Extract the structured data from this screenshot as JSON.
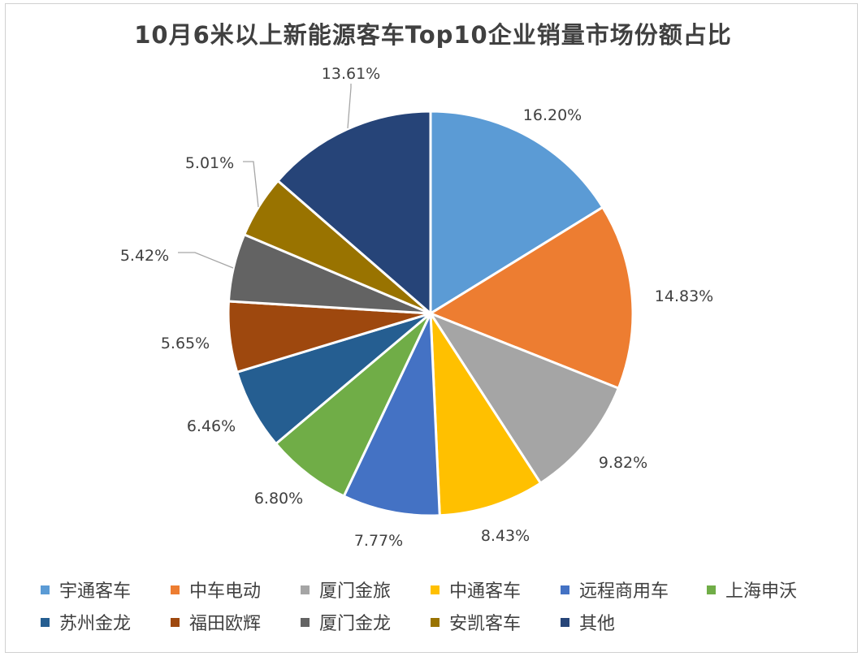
{
  "chart_data": {
    "type": "pie",
    "title": "10月6米以上新能源客车Top10企业销量市场份额占比",
    "categories": [
      "宇通客车",
      "中车电动",
      "厦门金旅",
      "中通客车",
      "远程商用车",
      "上海申沃",
      "苏州金龙",
      "福田欧辉",
      "厦门金龙",
      "安凯客车",
      "其他"
    ],
    "values": [
      16.2,
      14.83,
      9.82,
      8.43,
      7.77,
      6.8,
      6.46,
      5.65,
      5.42,
      5.01,
      13.61
    ],
    "data_labels": [
      "16.20%",
      "14.83%",
      "9.82%",
      "8.43%",
      "7.77%",
      "6.80%",
      "6.46%",
      "5.65%",
      "5.42%",
      "5.01%",
      "13.61%"
    ],
    "colors": [
      "#5b9bd5",
      "#ed7d31",
      "#a5a5a5",
      "#ffc000",
      "#4472c4",
      "#70ad47",
      "#255e91",
      "#9e480e",
      "#636363",
      "#997300",
      "#264478"
    ],
    "legend_position": "bottom",
    "start_angle_deg": 0,
    "direction": "clockwise"
  },
  "legend": {
    "rows": [
      [
        0,
        1,
        2,
        3,
        4,
        5
      ],
      [
        6,
        7,
        8,
        9,
        10
      ]
    ]
  }
}
